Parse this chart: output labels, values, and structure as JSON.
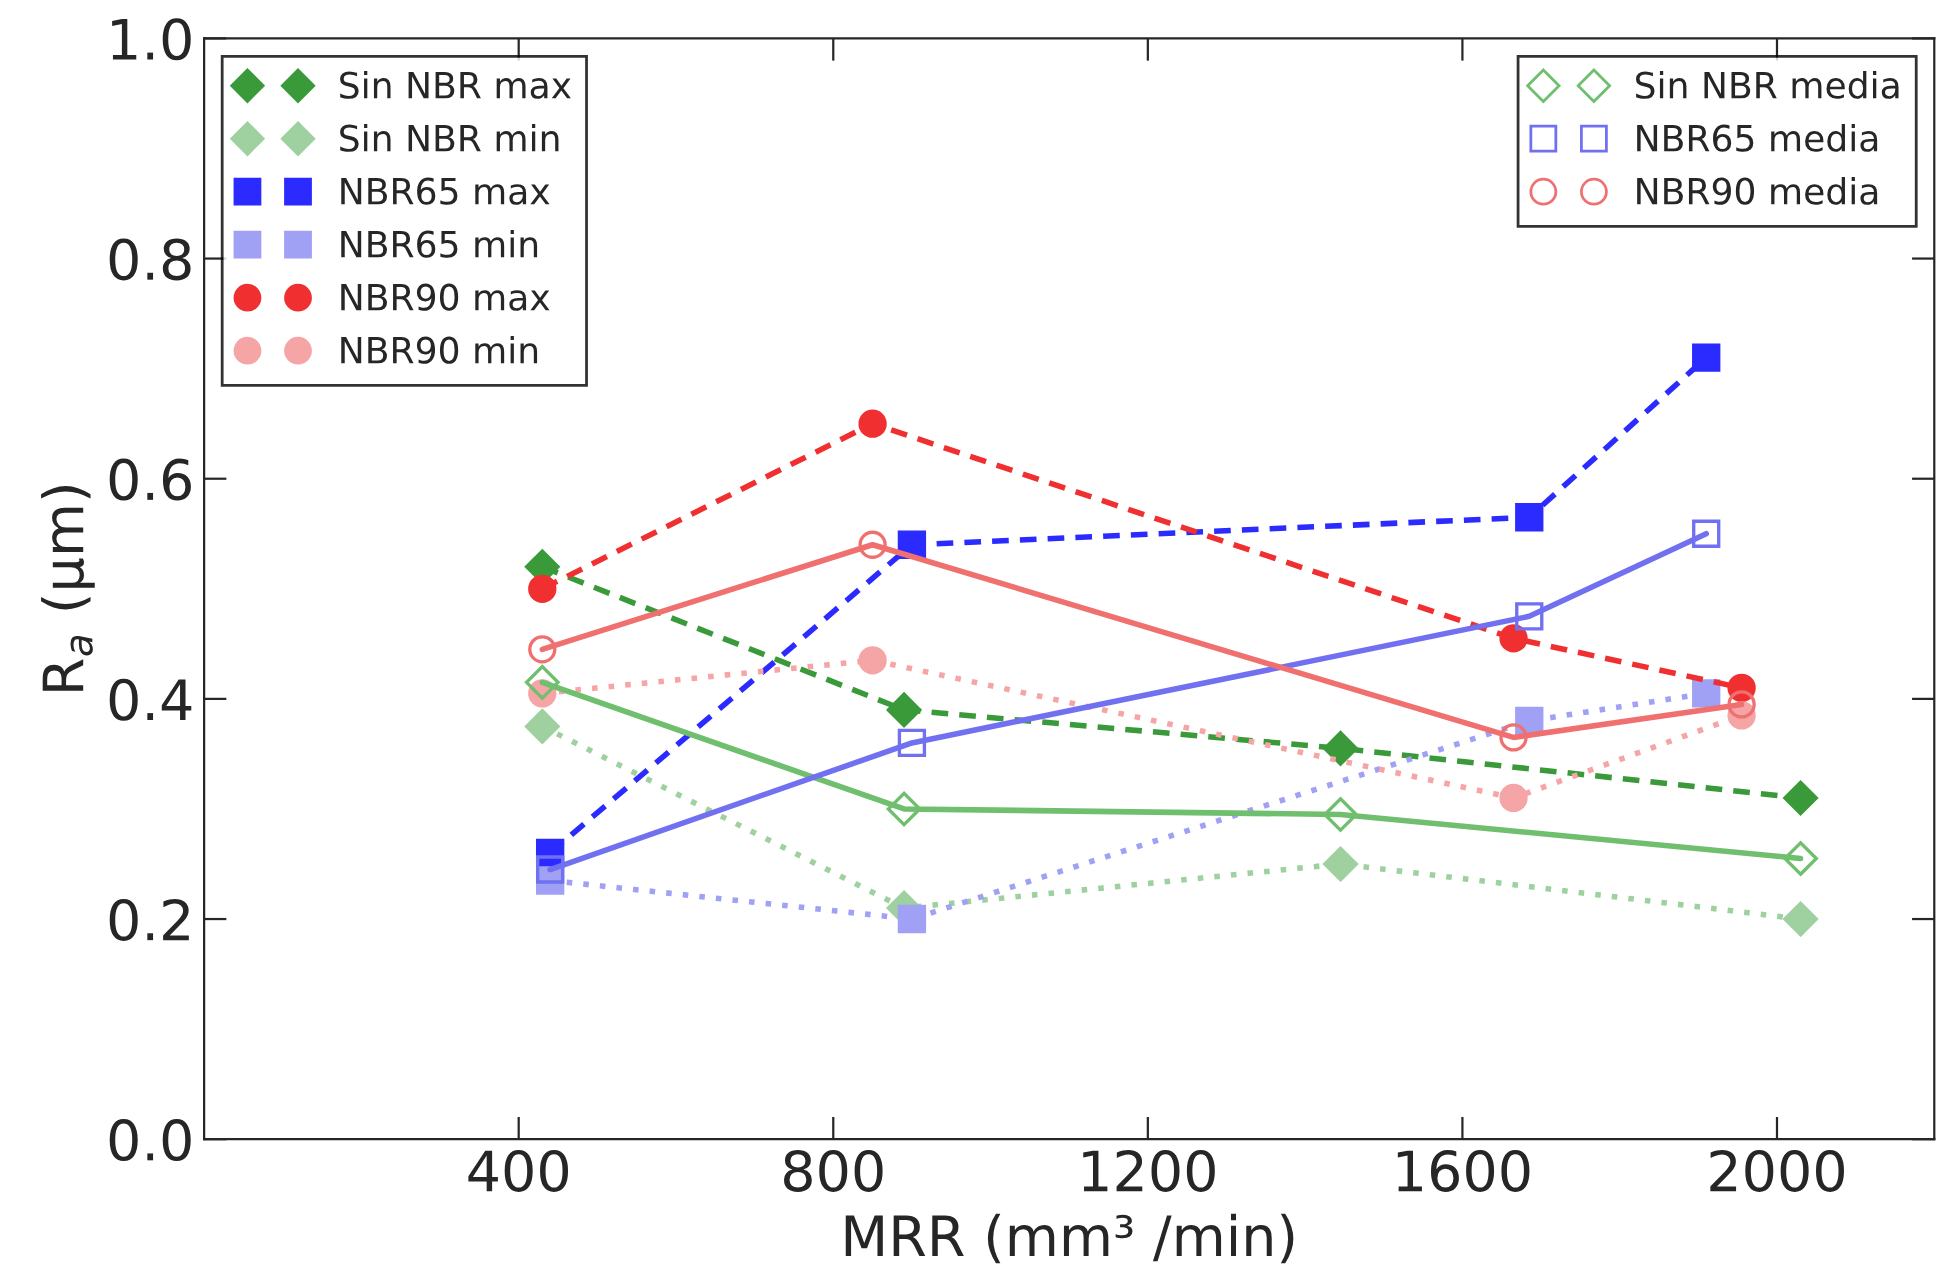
{
  "chart_data": {
    "type": "line",
    "xlabel": "MRR (mm³ /min)",
    "ylabel": "R$_{a}$ (μm)",
    "xlim": [
      0,
      2200
    ],
    "xticks": [
      400,
      800,
      1200,
      1600,
      2000
    ],
    "ylim": [
      0,
      1.0
    ],
    "yticks": [
      {
        "value": 0,
        "label": "0.0"
      },
      0.2,
      0.4,
      0.6,
      0.8,
      {
        "value": 1,
        "label": "1.0"
      }
    ],
    "grid": false,
    "legend": "top left",
    "series": [
      {
        "name": "Sin NBR max",
        "color": "#3a9a3a",
        "marker": "diamond",
        "line_style": "dashed",
        "x": [
          430,
          890,
          1445,
          2030
        ],
        "values": [
          0.52,
          0.39,
          0.355,
          0.31
        ]
      },
      {
        "name": "Sin NBR min",
        "color": "#9fd09f",
        "marker": "diamond",
        "line_style": "dotted",
        "x": [
          430,
          890,
          1445,
          2030
        ],
        "values": [
          0.375,
          0.21,
          0.25,
          0.2
        ]
      },
      {
        "name": "NBR65 max",
        "color": "#2b2bff",
        "marker": "square",
        "line_style": "dashed",
        "x": [
          440,
          900,
          1685,
          1910
        ],
        "values": [
          0.26,
          0.54,
          0.565,
          0.71
        ]
      },
      {
        "name": "NBR65 min",
        "color": "#a0a0f5",
        "marker": "square",
        "line_style": "dotted",
        "x": [
          440,
          900,
          1685,
          1910
        ],
        "values": [
          0.235,
          0.2,
          0.38,
          0.405
        ]
      },
      {
        "name": "NBR90 max",
        "color": "#f03030",
        "marker": "circle",
        "line_style": "dashed",
        "x": [
          430,
          850,
          1665,
          1955
        ],
        "values": [
          0.5,
          0.65,
          0.455,
          0.41
        ]
      },
      {
        "name": "NBR90 min",
        "color": "#f5a5a5",
        "marker": "circle",
        "line_style": "dotted",
        "x": [
          430,
          850,
          1665,
          1955
        ],
        "values": [
          0.405,
          0.435,
          0.31,
          0.385
        ]
      },
      {
        "name": "Sin NBR media",
        "color": "#6fbf6f",
        "marker": "diamond",
        "line_style": "solid",
        "x": [
          430,
          890,
          1445,
          2030
        ],
        "values": [
          0.415,
          0.3,
          0.295,
          0.255
        ]
      },
      {
        "name": "NBR65 media",
        "color": "#7070f0",
        "marker": "square",
        "line_style": "solid",
        "x": [
          440,
          900,
          1685,
          1910
        ],
        "values": [
          0.245,
          0.36,
          0.475,
          0.55
        ]
      },
      {
        "name": "NBR90 media",
        "color": "#f07070",
        "marker": "circle",
        "line_style": "solid",
        "x": [
          430,
          850,
          1665,
          1955
        ],
        "values": [
          0.445,
          0.54,
          0.365,
          0.395
        ]
      }
    ]
  }
}
